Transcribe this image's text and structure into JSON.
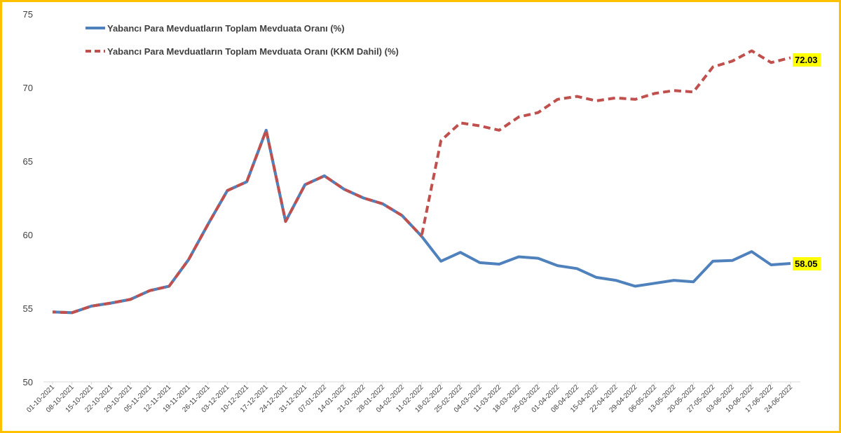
{
  "chart_data": {
    "type": "line",
    "title": "",
    "xlabel": "",
    "ylabel": "",
    "ylim": [
      50,
      75
    ],
    "yticks": [
      50,
      55,
      60,
      65,
      70,
      75
    ],
    "grid": false,
    "legend_position": "top-left",
    "categories": [
      "01-10-2021",
      "08-10-2021",
      "15-10-2021",
      "22-10-2021",
      "29-10-2021",
      "05-11-2021",
      "12-11-2021",
      "19-11-2021",
      "26-11-2021",
      "03-12-2021",
      "10-12-2021",
      "17-12-2021",
      "24-12-2021",
      "31-12-2021",
      "07-01-2022",
      "14-01-2022",
      "21-01-2022",
      "28-01-2022",
      "04-02-2022",
      "11-02-2022",
      "18-02-2022",
      "25-02-2022",
      "04-03-2022",
      "11-03-2022",
      "18-03-2022",
      "25-03-2022",
      "01-04-2022",
      "08-04-2022",
      "15-04-2022",
      "22-04-2022",
      "29-04-2022",
      "06-05-2022",
      "13-05-2022",
      "20-05-2022",
      "27-05-2022",
      "03-06-2022",
      "10-06-2022",
      "17-06-2022",
      "24-06-2022"
    ],
    "series": [
      {
        "name": "Yabancı Para Mevduatların Toplam Mevduata Oranı (%)",
        "color": "#4f81bd",
        "style": "solid",
        "values": [
          54.75,
          54.7,
          55.15,
          55.35,
          55.6,
          56.2,
          56.5,
          58.3,
          60.7,
          63.0,
          63.6,
          67.1,
          60.9,
          63.4,
          64.0,
          63.1,
          62.5,
          62.1,
          61.3,
          59.9,
          58.2,
          58.8,
          58.1,
          58.0,
          58.5,
          58.4,
          57.9,
          57.7,
          57.1,
          56.9,
          56.5,
          56.7,
          56.9,
          56.8,
          58.2,
          58.25,
          58.85,
          57.95,
          58.05
        ]
      },
      {
        "name": "Yabancı Para Mevduatların Toplam Mevduata Oranı (KKM Dahil) (%)",
        "color": "#c0504d",
        "style": "dashed",
        "values": [
          54.75,
          54.7,
          55.15,
          55.35,
          55.6,
          56.2,
          56.5,
          58.3,
          60.7,
          63.0,
          63.6,
          67.1,
          60.9,
          63.4,
          64.0,
          63.1,
          62.5,
          62.1,
          61.3,
          59.9,
          66.4,
          67.6,
          67.4,
          67.1,
          68.0,
          68.3,
          69.2,
          69.4,
          69.1,
          69.3,
          69.2,
          69.6,
          69.8,
          69.7,
          71.4,
          71.8,
          72.5,
          71.7,
          72.03
        ]
      }
    ],
    "end_labels": [
      "72.03",
      "58.05"
    ],
    "end_label_bg": "#ffff00",
    "frame_color": "#ffc000"
  }
}
